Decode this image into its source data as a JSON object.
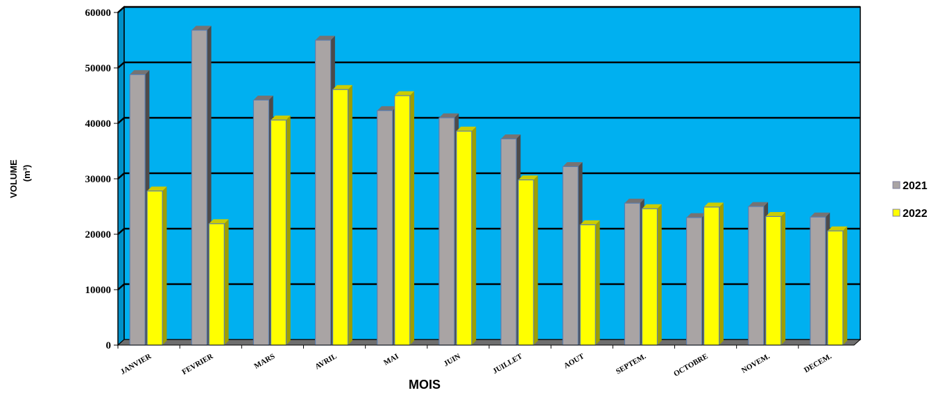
{
  "chart_data": {
    "type": "bar",
    "categories": [
      "JANVIER",
      "FEVRIER",
      "MARS",
      "AVRIL",
      "MAI",
      "JUIN",
      "JUILLET",
      "AOUT",
      "SEPTEM.",
      "OCTOBRE",
      "NOVEM.",
      "DECEM."
    ],
    "series": [
      {
        "name": "2021",
        "values": [
          48800,
          56800,
          44200,
          55000,
          42300,
          41000,
          37200,
          32200,
          25600,
          23000,
          25000,
          23100
        ],
        "color": "#a9a4a4"
      },
      {
        "name": "2022",
        "values": [
          27800,
          21900,
          40600,
          46100,
          45000,
          38600,
          29800,
          21700,
          24600,
          24900,
          23200,
          20600
        ],
        "color": "#ffff00"
      }
    ],
    "xlabel": "MOIS",
    "ylabel_line1": "VOLUME",
    "ylabel_line2": "(m³)",
    "ylim": [
      0,
      60000
    ],
    "yticks": [
      "0",
      "10000",
      "20000",
      "30000",
      "40000",
      "50000",
      "60000"
    ],
    "grid": true,
    "legend_position": "right",
    "background_color": "#00b0f0"
  }
}
